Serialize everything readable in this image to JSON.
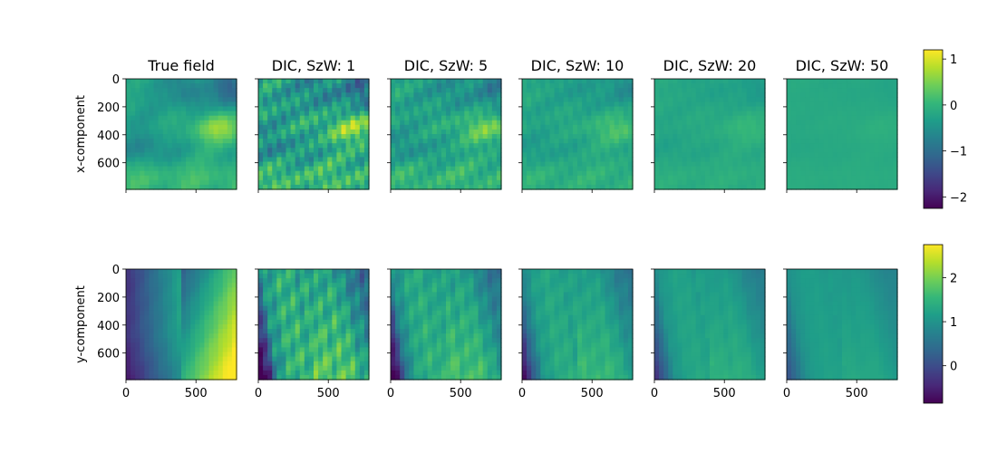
{
  "chart_data": {
    "type": "heatmap",
    "columns": [
      "True field",
      "DIC, SzW: 1",
      "DIC, SzW: 5",
      "DIC, SzW: 10",
      "DIC, SzW: 20",
      "DIC, SzW: 50"
    ],
    "rows": [
      {
        "ylabel": "x-component",
        "colorbar": {
          "vmin": -2.25,
          "vmax": 1.2,
          "ticks": [
            -2,
            -1,
            0,
            1
          ]
        }
      },
      {
        "ylabel": "y-component",
        "colorbar": {
          "vmin": -0.85,
          "vmax": 2.75,
          "ticks": [
            0,
            1,
            2
          ]
        }
      }
    ],
    "xticks": [
      0,
      500
    ],
    "yticks": [
      0,
      200,
      400,
      600
    ],
    "xlim": [
      0,
      790
    ],
    "ylim": [
      790,
      0
    ],
    "colormap": "viridis",
    "colormap_stops": [
      "#440154",
      "#482878",
      "#3e4989",
      "#31688e",
      "#26828e",
      "#1f9e89",
      "#35b779",
      "#6ece58",
      "#b5de2b",
      "#fde725"
    ]
  }
}
